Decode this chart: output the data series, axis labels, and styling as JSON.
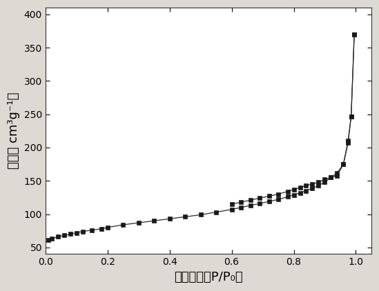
{
  "x_adsorption": [
    0.01,
    0.02,
    0.04,
    0.06,
    0.08,
    0.1,
    0.12,
    0.15,
    0.18,
    0.2,
    0.25,
    0.3,
    0.35,
    0.4,
    0.45,
    0.5,
    0.55,
    0.6,
    0.63,
    0.66,
    0.69,
    0.72,
    0.75,
    0.78,
    0.8,
    0.82,
    0.84,
    0.86,
    0.88,
    0.9,
    0.92,
    0.94,
    0.96,
    0.975,
    0.985,
    0.995
  ],
  "y_adsorption": [
    61,
    63,
    66,
    68,
    70,
    72,
    74,
    76,
    78,
    80,
    84,
    87,
    90,
    93,
    96,
    99,
    103,
    107,
    110,
    113,
    116,
    119,
    122,
    126,
    129,
    132,
    135,
    139,
    143,
    148,
    155,
    162,
    175,
    210,
    247,
    370
  ],
  "x_desorption": [
    0.995,
    0.985,
    0.975,
    0.96,
    0.94,
    0.92,
    0.9,
    0.88,
    0.86,
    0.84,
    0.82,
    0.8,
    0.78,
    0.75,
    0.72,
    0.69,
    0.66,
    0.63,
    0.6
  ],
  "y_desorption": [
    370,
    247,
    207,
    175,
    158,
    155,
    152,
    148,
    145,
    143,
    140,
    137,
    134,
    130,
    127,
    124,
    121,
    118,
    115
  ],
  "xlabel": "相对压强（P/P₀）",
  "ylabel": "体积（ cm³g⁻¹）",
  "xlim": [
    0.0,
    1.05
  ],
  "ylim": [
    40,
    410
  ],
  "xticks": [
    0.0,
    0.2,
    0.4,
    0.6,
    0.8,
    1.0
  ],
  "yticks": [
    50,
    100,
    150,
    200,
    250,
    300,
    350,
    400
  ],
  "line_color": "#2a2a2a",
  "marker_color": "#1a1a1a",
  "outer_bg_color": "#ddd9d3",
  "plot_bg_color": "#ffffff",
  "xlabel_fontsize": 13,
  "ylabel_fontsize": 13,
  "tick_fontsize": 10
}
